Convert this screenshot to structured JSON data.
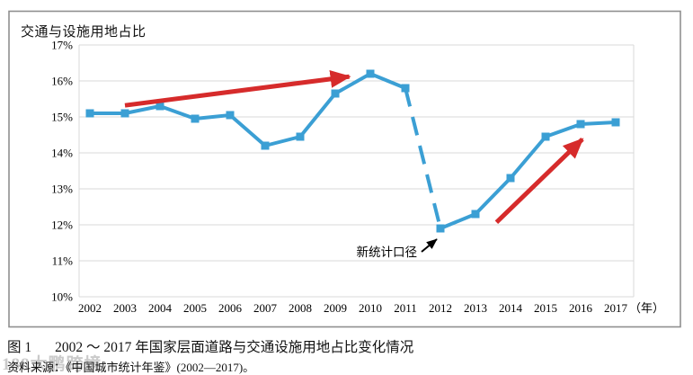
{
  "chart_data": {
    "type": "line",
    "title": "交通与设施用地占比",
    "x": [
      2002,
      2003,
      2004,
      2005,
      2006,
      2007,
      2008,
      2009,
      2010,
      2011,
      2012,
      2013,
      2014,
      2015,
      2016,
      2017
    ],
    "x_suffix": "（年）",
    "series": [
      {
        "name": "交通与设施用地占比",
        "values": [
          15.1,
          15.1,
          15.3,
          14.95,
          15.05,
          14.2,
          14.45,
          15.65,
          16.2,
          15.8,
          11.9,
          12.3,
          13.3,
          14.45,
          14.8,
          14.85
        ]
      }
    ],
    "ylim": [
      10,
      17
    ],
    "yticks": [
      "10%",
      "11%",
      "12%",
      "13%",
      "14%",
      "15%",
      "16%",
      "17%"
    ],
    "grid": true,
    "legend": false,
    "dashed_segment": {
      "from": 2011,
      "to": 2012
    },
    "annotation": {
      "text": "新统计口径",
      "target_year": 2012
    },
    "trend_arrows": [
      {
        "from_x": 2003,
        "from_y": 15.32,
        "to_x": 2009.4,
        "to_y": 16.12
      },
      {
        "from_x": 2013.6,
        "from_y": 12.07,
        "to_x": 2016.05,
        "to_y": 14.38
      }
    ],
    "colors": {
      "line": "#3B9FD4",
      "trend_arrow": "#D62B2B",
      "annotation_arrow": "#000000",
      "grid": "#D9D9D9",
      "border": "#8F8F8F",
      "text": "#000000"
    }
  },
  "caption": {
    "figure_label": "图 1",
    "figure_title": "2002 ～ 2017 年国家层面道路与交通设施用地占比变化情况",
    "source": "资料来源：《中国城市统计年鉴》(2002—2017)。"
  },
  "watermark": "188大鹏跨境"
}
